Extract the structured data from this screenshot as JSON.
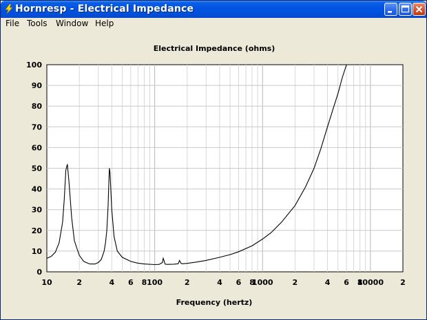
{
  "window": {
    "title": "Hornresp - Electrical Impedance",
    "title_bar_color": "#0054E3",
    "close_button_color": "#D4522C"
  },
  "menu": {
    "items": [
      "File",
      "Tools",
      "Window",
      "Help"
    ]
  },
  "chart_data": {
    "type": "line",
    "title": "Electrical Impedance (ohms)",
    "xlabel": "Frequency (hertz)",
    "ylabel": "",
    "xscale": "log",
    "xlim": [
      10,
      20000
    ],
    "ylim": [
      0,
      100
    ],
    "grid": true,
    "background": "#FFFFFF",
    "line_color": "#000000",
    "y_ticks": [
      0,
      10,
      20,
      30,
      40,
      50,
      60,
      70,
      80,
      90,
      100
    ],
    "x_tick_values": [
      10,
      20,
      40,
      60,
      80,
      100,
      200,
      400,
      600,
      800,
      1000,
      2000,
      4000,
      6000,
      8000,
      10000,
      20000
    ],
    "x_tick_labels": [
      "10",
      "2",
      "4",
      "6",
      "8",
      "100",
      "2",
      "4",
      "6",
      "8",
      "1000",
      "2",
      "4",
      "6",
      "8",
      "10000",
      "2"
    ],
    "series": [
      {
        "x": [
          10,
          11,
          12,
          13,
          14,
          14.5,
          15,
          15.5,
          16,
          17,
          18,
          20,
          22,
          25,
          28,
          30,
          32,
          34,
          35,
          36,
          37,
          37.5,
          38,
          38.5,
          39,
          40,
          42,
          45,
          50,
          60,
          70,
          80,
          100,
          110,
          118,
          120,
          122,
          125,
          130,
          150,
          165,
          170,
          175,
          180,
          200,
          250,
          300,
          400,
          500,
          600,
          800,
          1000,
          1200,
          1500,
          2000,
          2500,
          3000,
          3500,
          4000,
          4500,
          5000,
          5500,
          6000,
          6500,
          7000
        ],
        "y": [
          6.5,
          7.5,
          9.5,
          14,
          24,
          35,
          49,
          52,
          44,
          26,
          15,
          8,
          5,
          3.8,
          3.8,
          4.5,
          6,
          10,
          14,
          20,
          32,
          42,
          50,
          48,
          42,
          30,
          17,
          10,
          7,
          5,
          4.2,
          3.8,
          3.5,
          3.6,
          4.5,
          6.5,
          5.5,
          3.7,
          3.6,
          3.7,
          3.9,
          5.5,
          4.2,
          3.9,
          4.1,
          4.8,
          5.5,
          7,
          8.3,
          9.7,
          12.6,
          15.8,
          18.9,
          24,
          32,
          41,
          50,
          60,
          70,
          78.5,
          86,
          94,
          100,
          100,
          100
        ]
      }
    ]
  }
}
